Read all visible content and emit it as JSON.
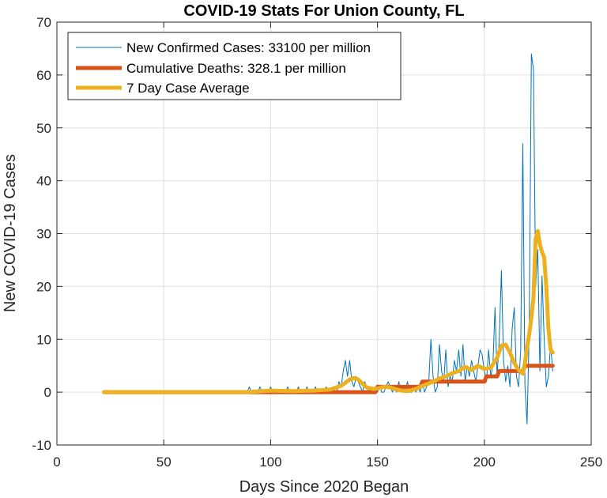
{
  "chart_data": {
    "type": "line",
    "title": "COVID-19 Stats For Union County, FL",
    "xlabel": "Days Since 2020 Began",
    "ylabel": "New COVID-19 Cases",
    "xlim": [
      0,
      250
    ],
    "ylim": [
      -10,
      70
    ],
    "xticks": [
      0,
      50,
      100,
      150,
      200,
      250
    ],
    "yticks": [
      -10,
      0,
      10,
      20,
      30,
      40,
      50,
      60,
      70
    ],
    "grid": true,
    "legend_position": "top-left",
    "series": [
      {
        "name": "New Confirmed Cases: 33100 per million",
        "color": "#0072BD",
        "x": [
          22,
          60,
          88,
          89,
          90,
          91,
          92,
          93,
          94,
          95,
          96,
          97,
          98,
          99,
          100,
          101,
          102,
          103,
          104,
          105,
          106,
          107,
          108,
          109,
          110,
          111,
          112,
          113,
          114,
          115,
          116,
          117,
          118,
          119,
          120,
          121,
          122,
          123,
          124,
          125,
          126,
          127,
          128,
          129,
          130,
          131,
          132,
          133,
          134,
          135,
          136,
          137,
          138,
          139,
          140,
          141,
          142,
          143,
          144,
          145,
          146,
          147,
          148,
          149,
          150,
          151,
          152,
          153,
          154,
          155,
          156,
          157,
          158,
          159,
          160,
          161,
          162,
          163,
          164,
          165,
          166,
          167,
          168,
          169,
          170,
          171,
          172,
          173,
          174,
          175,
          176,
          177,
          178,
          179,
          180,
          181,
          182,
          183,
          184,
          185,
          186,
          187,
          188,
          189,
          190,
          191,
          192,
          193,
          194,
          195,
          196,
          197,
          198,
          199,
          200,
          201,
          202,
          203,
          204,
          205,
          206,
          207,
          208,
          209,
          210,
          211,
          212,
          213,
          214,
          215,
          216,
          217,
          218,
          219,
          220,
          221,
          222,
          223,
          224,
          225,
          226,
          227,
          228,
          229,
          230,
          231,
          232
        ],
        "y": [
          0,
          0,
          0,
          0,
          1,
          0,
          0,
          0,
          0,
          1,
          0,
          0,
          0,
          0,
          1,
          0,
          0,
          0,
          0,
          0,
          0,
          0,
          1,
          0,
          0,
          0,
          0,
          1,
          0,
          0,
          0,
          1,
          0,
          0,
          0,
          1,
          0,
          0,
          0,
          0,
          1,
          0,
          0,
          1,
          0,
          0,
          2,
          1,
          4,
          6,
          3,
          6,
          2,
          1,
          3,
          2,
          1,
          0,
          2,
          1,
          0,
          1,
          0,
          1,
          0,
          1,
          0,
          0,
          1,
          2,
          1,
          0,
          1,
          0,
          2,
          0,
          1,
          0,
          2,
          0,
          0,
          1,
          0,
          1,
          0,
          2,
          0,
          1,
          2,
          10,
          3,
          0,
          1,
          9,
          4,
          2,
          8,
          1,
          3,
          2,
          6,
          4,
          8,
          3,
          9,
          2,
          5,
          3,
          6,
          4,
          2,
          5,
          8,
          7,
          4,
          2,
          8,
          3,
          5,
          16,
          3,
          10,
          23,
          6,
          2,
          5,
          1,
          12,
          16,
          3,
          1,
          8,
          47,
          1,
          -6,
          12,
          64,
          61,
          20,
          27,
          4,
          22,
          10,
          1,
          3,
          9,
          4
        ]
      },
      {
        "name": "Cumulative Deaths: 328.1 per million",
        "color": "#D95319",
        "x": [
          22,
          149,
          150,
          170,
          171,
          200,
          201,
          206,
          207,
          218,
          219,
          232
        ],
        "y": [
          0,
          0,
          1,
          1,
          2,
          2,
          3,
          3,
          4,
          4,
          5,
          5
        ]
      },
      {
        "name": "7 Day Case Average",
        "color": "#EDB120",
        "x": [
          22,
          60,
          88,
          100,
          110,
          120,
          128,
          130,
          133,
          135,
          137,
          139,
          141,
          143,
          145,
          148,
          150,
          153,
          156,
          158,
          161,
          164,
          166,
          168,
          170,
          173,
          176,
          179,
          182,
          185,
          188,
          191,
          194,
          197,
          200,
          203,
          206,
          208,
          210,
          212,
          214,
          216,
          218,
          219,
          220,
          221,
          222,
          223,
          224,
          225,
          226,
          227,
          228,
          229,
          230,
          231,
          232
        ],
        "y": [
          0,
          0,
          0,
          0.3,
          0.2,
          0.3,
          0.5,
          0.8,
          1.2,
          1.8,
          2.4,
          2.7,
          2.4,
          1.6,
          0.9,
          0.6,
          0.7,
          1.0,
          0.9,
          0.6,
          0.3,
          0.2,
          0.4,
          0.6,
          1.0,
          1.5,
          2.0,
          2.6,
          3.0,
          3.6,
          4.0,
          4.8,
          4.2,
          5.0,
          4.4,
          4.6,
          6.5,
          8.8,
          9.0,
          7.5,
          5.5,
          4.2,
          3.5,
          5.5,
          8.5,
          11.0,
          14.0,
          18.0,
          29.0,
          30.5,
          28.0,
          26.5,
          25.5,
          20.0,
          12.0,
          8.0,
          7.5
        ]
      }
    ]
  }
}
